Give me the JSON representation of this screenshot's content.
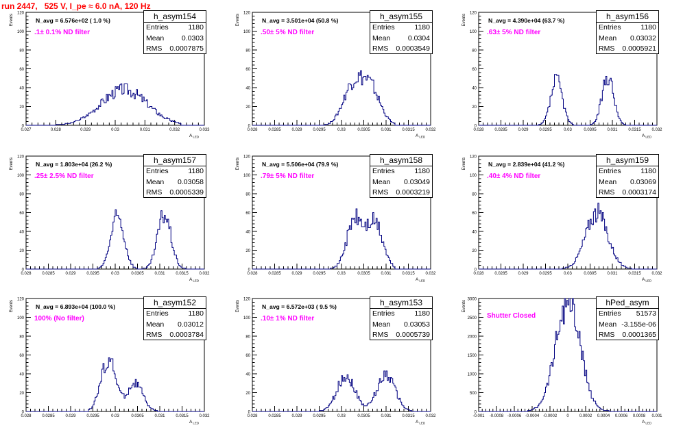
{
  "run_title": "run 2447,   525 V, I_pe ≈ 6.0 nA, 120 Hz",
  "stat_labels": {
    "entries": "Entries",
    "mean": "Mean",
    "rms": "RMS"
  },
  "y_axis_label": "Events",
  "x_axis_label": "A",
  "x_axis_sub": "LED",
  "chart_data": [
    {
      "type": "bar",
      "title": "h_asym154",
      "entries": "1180",
      "mean": "0.0303",
      "rms": "0.0007875",
      "navg": "N_avg = 6.576e+02 ( 1.0 %)",
      "filter": ".1± 0.1% ND filter",
      "xlim": [
        0.027,
        0.033
      ],
      "xticks": [
        0.027,
        0.028,
        0.029,
        0.03,
        0.031,
        0.032,
        0.033
      ],
      "xtick_labels": [
        "0.027",
        "0.028",
        "0.029",
        "0.03",
        "0.031",
        "0.032",
        "0.033"
      ],
      "ylim": [
        0,
        120
      ],
      "yticks": [
        0,
        20,
        40,
        60,
        80,
        100,
        120
      ],
      "peaks": [
        {
          "mu": 0.0303,
          "sigma": 0.00078,
          "amp": 38
        }
      ],
      "xrange": [
        0.028,
        0.0322
      ]
    },
    {
      "type": "bar",
      "title": "h_asym155",
      "entries": "1180",
      "mean": "0.0304",
      "rms": "0.0003549",
      "navg": "N_avg = 3.501e+04 (50.8 %)",
      "filter": ".50± 5% ND filter",
      "xlim": [
        0.028,
        0.032
      ],
      "xticks": [
        0.028,
        0.0285,
        0.029,
        0.0295,
        0.03,
        0.0305,
        0.031,
        0.0315,
        0.032
      ],
      "xtick_labels": [
        "0.028",
        "0.0285",
        "0.029",
        "0.0295",
        "0.03",
        "0.0305",
        "0.031",
        "0.0315",
        "0.032"
      ],
      "ylim": [
        0,
        120
      ],
      "yticks": [
        0,
        20,
        40,
        60,
        80,
        100,
        120
      ],
      "peaks": [
        {
          "mu": 0.03025,
          "sigma": 0.00022,
          "amp": 40
        },
        {
          "mu": 0.03065,
          "sigma": 0.00022,
          "amp": 38
        }
      ],
      "xrange": [
        0.0296,
        0.0312
      ]
    },
    {
      "type": "bar",
      "title": "h_asym156",
      "entries": "1180",
      "mean": "0.03032",
      "rms": "0.0005921",
      "navg": "N_avg = 4.390e+04 (63.7 %)",
      "filter": ".63± 5% ND filter",
      "xlim": [
        0.028,
        0.032
      ],
      "xticks": [
        0.028,
        0.0285,
        0.029,
        0.0295,
        0.03,
        0.0305,
        0.031,
        0.0315,
        0.032
      ],
      "xtick_labels": [
        "0.028",
        "0.0285",
        "0.029",
        "0.0295",
        "0.03",
        "0.0305",
        "0.031",
        "0.0315",
        "0.032"
      ],
      "ylim": [
        0,
        120
      ],
      "yticks": [
        0,
        20,
        40,
        60,
        80,
        100,
        120
      ],
      "peaks": [
        {
          "mu": 0.02975,
          "sigma": 0.00013,
          "amp": 48
        },
        {
          "mu": 0.0309,
          "sigma": 0.00013,
          "amp": 52
        }
      ],
      "xrange": [
        0.0293,
        0.0314
      ]
    },
    {
      "type": "bar",
      "title": "h_asym157",
      "entries": "1180",
      "mean": "0.03058",
      "rms": "0.0005339",
      "navg": "N_avg = 1.803e+04 (26.2 %)",
      "filter": ".25± 2.5% ND filter",
      "xlim": [
        0.028,
        0.032
      ],
      "xticks": [
        0.028,
        0.0285,
        0.029,
        0.0295,
        0.03,
        0.0305,
        0.031,
        0.0315,
        0.032
      ],
      "xtick_labels": [
        "0.028",
        "0.0285",
        "0.029",
        "0.0295",
        "0.03",
        "0.0305",
        "0.031",
        "0.0315",
        "0.032"
      ],
      "ylim": [
        0,
        120
      ],
      "yticks": [
        0,
        20,
        40,
        60,
        80,
        100,
        120
      ],
      "peaks": [
        {
          "mu": 0.03005,
          "sigma": 0.00015,
          "amp": 55
        },
        {
          "mu": 0.0311,
          "sigma": 0.00015,
          "amp": 58
        }
      ],
      "xrange": [
        0.0295,
        0.0316
      ]
    },
    {
      "type": "bar",
      "title": "h_asym158",
      "entries": "1180",
      "mean": "0.03049",
      "rms": "0.0003219",
      "navg": "N_avg = 5.506e+04 (79.9 %)",
      "filter": ".79± 5% ND filter",
      "xlim": [
        0.028,
        0.032
      ],
      "xticks": [
        0.028,
        0.0285,
        0.029,
        0.0295,
        0.03,
        0.0305,
        0.031,
        0.0315,
        0.032
      ],
      "xtick_labels": [
        "0.028",
        "0.0285",
        "0.029",
        "0.0295",
        "0.03",
        "0.0305",
        "0.031",
        "0.0315",
        "0.032"
      ],
      "ylim": [
        0,
        120
      ],
      "yticks": [
        0,
        20,
        40,
        60,
        80,
        100,
        120
      ],
      "peaks": [
        {
          "mu": 0.0303,
          "sigma": 0.00018,
          "amp": 52
        },
        {
          "mu": 0.03075,
          "sigma": 0.00018,
          "amp": 48
        }
      ],
      "xrange": [
        0.0297,
        0.0312
      ]
    },
    {
      "type": "bar",
      "title": "h_asym159",
      "entries": "1180",
      "mean": "0.03069",
      "rms": "0.0003174",
      "navg": "N_avg = 2.839e+04 (41.2 %)",
      "filter": ".40± 4% ND filter",
      "xlim": [
        0.028,
        0.032
      ],
      "xticks": [
        0.028,
        0.0285,
        0.029,
        0.0295,
        0.03,
        0.0305,
        0.031,
        0.0315,
        0.032
      ],
      "xtick_labels": [
        "0.028",
        "0.0285",
        "0.029",
        "0.0295",
        "0.03",
        "0.0305",
        "0.031",
        "0.0315",
        "0.032"
      ],
      "ylim": [
        0,
        120
      ],
      "yticks": [
        0,
        20,
        40,
        60,
        80,
        100,
        120
      ],
      "peaks": [
        {
          "mu": 0.03065,
          "sigma": 0.00025,
          "amp": 60
        }
      ],
      "xrange": [
        0.0298,
        0.0315
      ]
    },
    {
      "type": "bar",
      "title": "h_asym152",
      "entries": "1180",
      "mean": "0.03012",
      "rms": "0.0003784",
      "navg": "N_avg = 6.893e+04 (100.0 %)",
      "filter": "100% (No filter)",
      "xlim": [
        0.028,
        0.032
      ],
      "xticks": [
        0.028,
        0.0285,
        0.029,
        0.0295,
        0.03,
        0.0305,
        0.031,
        0.0315,
        0.032
      ],
      "xtick_labels": [
        "0.028",
        "0.0285",
        "0.029",
        "0.0295",
        "0.03",
        "0.0305",
        "0.031",
        "0.0315",
        "0.032"
      ],
      "ylim": [
        0,
        120
      ],
      "yticks": [
        0,
        20,
        40,
        60,
        80,
        100,
        120
      ],
      "peaks": [
        {
          "mu": 0.02985,
          "sigma": 0.00017,
          "amp": 55
        },
        {
          "mu": 0.03045,
          "sigma": 0.00017,
          "amp": 30
        }
      ],
      "xrange": [
        0.0294,
        0.0312
      ]
    },
    {
      "type": "bar",
      "title": "h_asym153",
      "entries": "1180",
      "mean": "0.03053",
      "rms": "0.0005739",
      "navg": "N_avg = 6.572e+03 ( 9.5 %)",
      "filter": ".10± 1% ND filter",
      "xlim": [
        0.028,
        0.032
      ],
      "xticks": [
        0.028,
        0.0285,
        0.029,
        0.0295,
        0.03,
        0.0305,
        0.031,
        0.0315,
        0.032
      ],
      "xtick_labels": [
        "0.028",
        "0.0285",
        "0.029",
        "0.0295",
        "0.03",
        "0.0305",
        "0.031",
        "0.0315",
        "0.032"
      ],
      "ylim": [
        0,
        120
      ],
      "yticks": [
        0,
        20,
        40,
        60,
        80,
        100,
        120
      ],
      "peaks": [
        {
          "mu": 0.0301,
          "sigma": 0.0002,
          "amp": 38
        },
        {
          "mu": 0.031,
          "sigma": 0.0002,
          "amp": 40
        }
      ],
      "xrange": [
        0.0293,
        0.0317
      ]
    },
    {
      "type": "bar",
      "title": "hPed_asym",
      "entries": "51573",
      "mean": "-3.155e-06",
      "rms": "0.0001365",
      "navg": "",
      "filter": "Shutter Closed",
      "xlim": [
        -0.001,
        0.001
      ],
      "xticks": [
        -0.001,
        -0.0008,
        -0.0006,
        -0.0004,
        -0.0002,
        0,
        0.0002,
        0.0004,
        0.0006,
        0.0008,
        0.001
      ],
      "xtick_labels": [
        "-0.001",
        "-0.0008",
        "-0.0006",
        "-0.0004",
        "-0.0002",
        "0",
        "0.0002",
        "0.0004",
        "0.0006",
        "0.0008",
        "0.001"
      ],
      "ylim": [
        0,
        3000
      ],
      "yticks": [
        0,
        500,
        1000,
        1500,
        2000,
        2500,
        3000
      ],
      "peaks": [
        {
          "mu": 0.0,
          "sigma": 0.000137,
          "amp": 2950
        }
      ],
      "xrange": [
        -0.00055,
        0.00055
      ]
    }
  ]
}
